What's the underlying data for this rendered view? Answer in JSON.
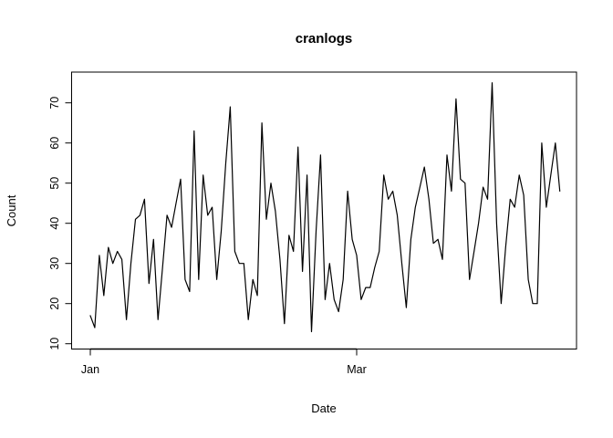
{
  "title": "cranlogs",
  "chart_data": {
    "type": "line",
    "title": "cranlogs",
    "xlabel": "Date",
    "ylabel": "Count",
    "legend": null,
    "grid": false,
    "line_color": "#000000",
    "background": "#ffffff",
    "ylim": [
      10,
      77
    ],
    "y_ticks": [
      10,
      20,
      30,
      40,
      50,
      60,
      70
    ],
    "x_ticks": [
      {
        "label": "Jan",
        "day": 0
      },
      {
        "label": "Mar",
        "day": 59
      }
    ],
    "x_unit": "day-index from Jan 1",
    "values": [
      17,
      14,
      32,
      22,
      34,
      30,
      33,
      31,
      16,
      30,
      41,
      42,
      46,
      25,
      36,
      16,
      29,
      42,
      39,
      45,
      51,
      26,
      23,
      63,
      26,
      52,
      42,
      44,
      26,
      38,
      55,
      69,
      33,
      30,
      30,
      16,
      26,
      22,
      65,
      41,
      50,
      43,
      31,
      15,
      37,
      33,
      59,
      28,
      52,
      13,
      38,
      57,
      21,
      30,
      21,
      18,
      26,
      48,
      36,
      32,
      21,
      24,
      24,
      29,
      33,
      52,
      46,
      48,
      42,
      30,
      19,
      36,
      44,
      49,
      54,
      46,
      35,
      36,
      31,
      57,
      48,
      71,
      51,
      50,
      26,
      33,
      40,
      49,
      46,
      75,
      40,
      20,
      34,
      46,
      44,
      52,
      47,
      26,
      20,
      20,
      60,
      44,
      52,
      60,
      48
    ]
  }
}
